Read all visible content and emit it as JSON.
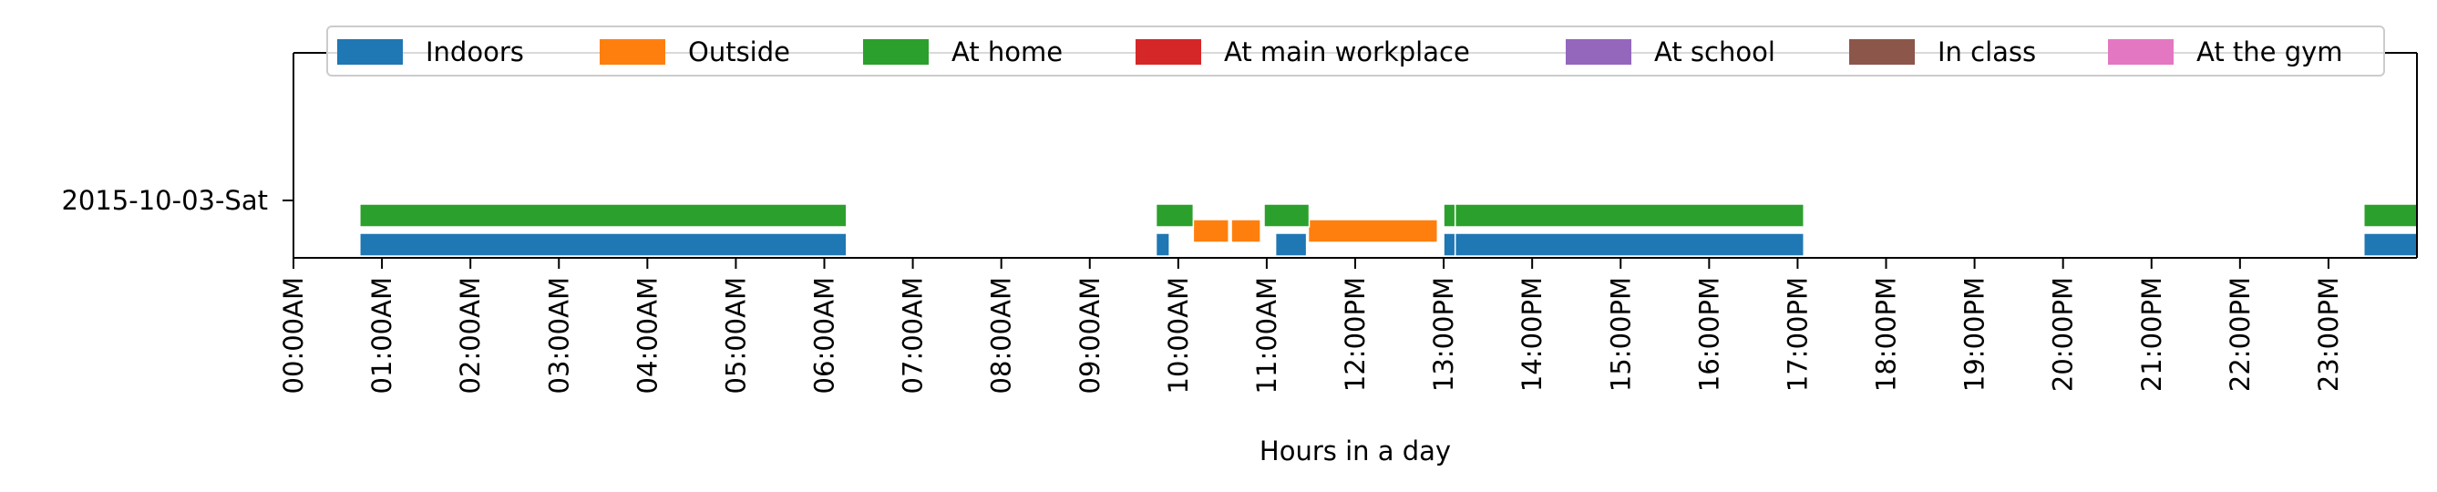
{
  "chart_data": {
    "type": "timeline",
    "title": "",
    "xlabel": "Hours in a day",
    "ylabel": "",
    "x_unit": "hour of day",
    "xlim": [
      0,
      24
    ],
    "x_ticks": [
      0,
      1,
      2,
      3,
      4,
      5,
      6,
      7,
      8,
      9,
      10,
      11,
      12,
      13,
      14,
      15,
      16,
      17,
      18,
      19,
      20,
      21,
      22,
      23
    ],
    "x_tick_labels": [
      "00:00AM",
      "01:00AM",
      "02:00AM",
      "03:00AM",
      "04:00AM",
      "05:00AM",
      "06:00AM",
      "07:00AM",
      "08:00AM",
      "09:00AM",
      "10:00AM",
      "11:00AM",
      "12:00PM",
      "13:00PM",
      "14:00PM",
      "15:00PM",
      "16:00PM",
      "17:00PM",
      "18:00PM",
      "19:00PM",
      "20:00PM",
      "21:00PM",
      "22:00PM",
      "23:00PM"
    ],
    "categories": [
      "2015-10-03-Sat"
    ],
    "legend_position": "top",
    "grid": false,
    "series": [
      {
        "name": "Indoors",
        "color": "#1f77b4",
        "intervals": [
          [
            0.75,
            6.25
          ],
          [
            9.75,
            9.9
          ],
          [
            11.1,
            11.45
          ],
          [
            13.0,
            13.13
          ],
          [
            13.13,
            17.07
          ],
          [
            23.4,
            24.0
          ]
        ]
      },
      {
        "name": "Outside",
        "color": "#ff7f0e",
        "intervals": [
          [
            10.17,
            10.57
          ],
          [
            10.6,
            10.93
          ],
          [
            11.47,
            12.93
          ]
        ]
      },
      {
        "name": "At home",
        "color": "#2ca02c",
        "intervals": [
          [
            0.75,
            6.25
          ],
          [
            9.75,
            10.17
          ],
          [
            10.97,
            11.48
          ],
          [
            13.0,
            13.13
          ],
          [
            13.13,
            17.07
          ],
          [
            23.4,
            24.0
          ]
        ]
      },
      {
        "name": "At main workplace",
        "color": "#d62728",
        "intervals": []
      },
      {
        "name": "At school",
        "color": "#9467bd",
        "intervals": []
      },
      {
        "name": "In class",
        "color": "#8c564b",
        "intervals": []
      },
      {
        "name": "At the gym",
        "color": "#e377c2",
        "intervals": []
      }
    ]
  }
}
